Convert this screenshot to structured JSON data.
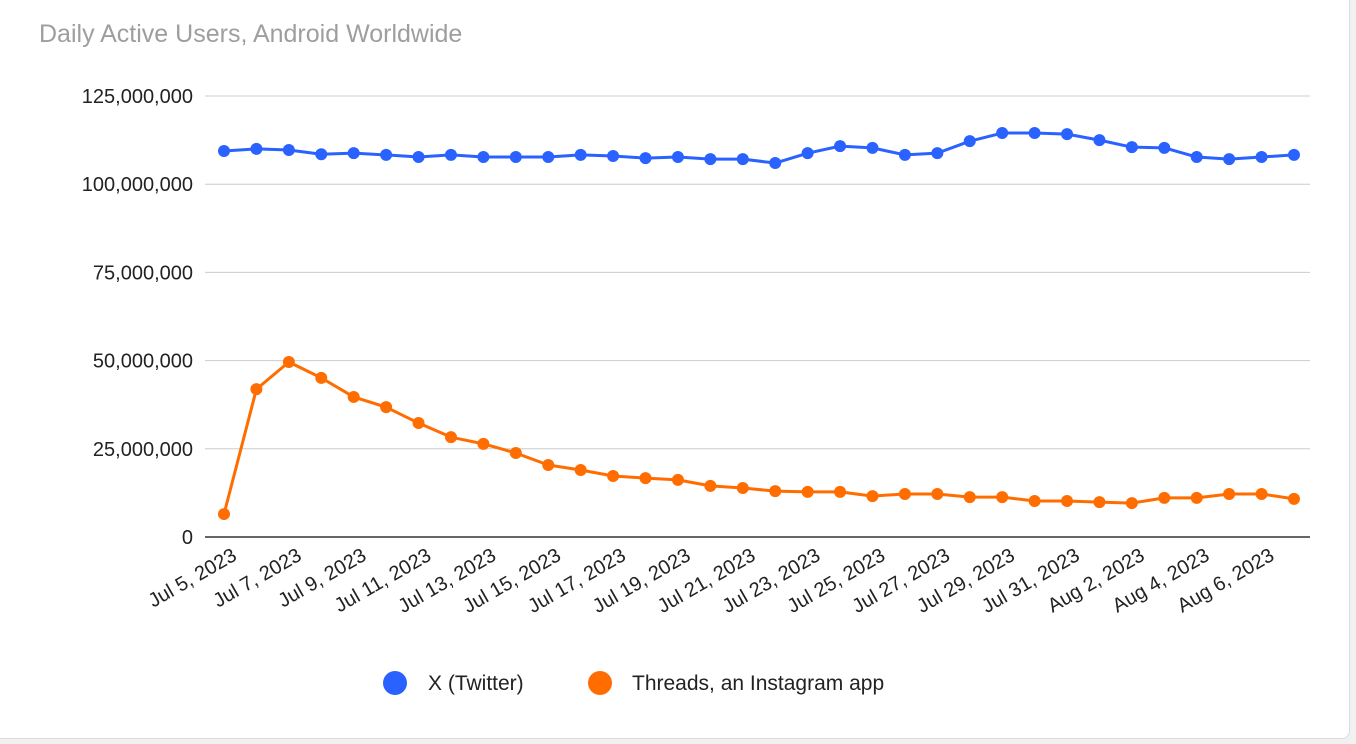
{
  "chart_data": {
    "type": "line",
    "title": "Daily Active Users, Android Worldwide",
    "xlabel": "",
    "ylabel": "",
    "ylim": [
      0,
      125000000
    ],
    "yticks": [
      0,
      25000000,
      50000000,
      75000000,
      100000000,
      125000000
    ],
    "ytick_labels": [
      "0",
      "25,000,000",
      "50,000,000",
      "75,000,000",
      "100,000,000",
      "125,000,000"
    ],
    "grid": true,
    "legend": "bottom",
    "x": [
      "Jul 5, 2023",
      "Jul 6, 2023",
      "Jul 7, 2023",
      "Jul 8, 2023",
      "Jul 9, 2023",
      "Jul 10, 2023",
      "Jul 11, 2023",
      "Jul 12, 2023",
      "Jul 13, 2023",
      "Jul 14, 2023",
      "Jul 15, 2023",
      "Jul 16, 2023",
      "Jul 17, 2023",
      "Jul 18, 2023",
      "Jul 19, 2023",
      "Jul 20, 2023",
      "Jul 21, 2023",
      "Jul 22, 2023",
      "Jul 23, 2023",
      "Jul 24, 2023",
      "Jul 25, 2023",
      "Jul 26, 2023",
      "Jul 27, 2023",
      "Jul 28, 2023",
      "Jul 29, 2023",
      "Jul 30, 2023",
      "Jul 31, 2023",
      "Aug 1, 2023",
      "Aug 2, 2023",
      "Aug 3, 2023",
      "Aug 4, 2023",
      "Aug 5, 2023",
      "Aug 6, 2023",
      "Aug 7, 2023"
    ],
    "xtick_labels": [
      "Jul 5, 2023",
      "Jul 7, 2023",
      "Jul 9, 2023",
      "Jul 11, 2023",
      "Jul 13, 2023",
      "Jul 15, 2023",
      "Jul 17, 2023",
      "Jul 19, 2023",
      "Jul 21, 2023",
      "Jul 23, 2023",
      "Jul 25, 2023",
      "Jul 27, 2023",
      "Jul 29, 2023",
      "Jul 31, 2023",
      "Aug 2, 2023",
      "Aug 4, 2023",
      "Aug 6, 2023"
    ],
    "series": [
      {
        "name": "X (Twitter)",
        "color": "#2962ff",
        "values": [
          109400000,
          110000000,
          109700000,
          108500000,
          108800000,
          108300000,
          107700000,
          108300000,
          107700000,
          107700000,
          107700000,
          108300000,
          108000000,
          107400000,
          107700000,
          107100000,
          107100000,
          106000000,
          108800000,
          110800000,
          110300000,
          108300000,
          108800000,
          112200000,
          114500000,
          114500000,
          114200000,
          112500000,
          110500000,
          110300000,
          107700000,
          107100000,
          107700000,
          108300000
        ]
      },
      {
        "name": "Threads, an Instagram app",
        "color": "#ff6d00",
        "values": [
          6500000,
          41900000,
          49600000,
          45100000,
          39700000,
          36800000,
          32300000,
          28300000,
          26400000,
          23800000,
          20400000,
          19000000,
          17300000,
          16700000,
          16200000,
          14500000,
          13900000,
          13000000,
          12800000,
          12800000,
          11600000,
          12200000,
          12200000,
          11300000,
          11300000,
          10200000,
          10200000,
          9900000,
          9600000,
          11100000,
          11100000,
          12200000,
          12200000,
          10800000
        ]
      }
    ]
  }
}
